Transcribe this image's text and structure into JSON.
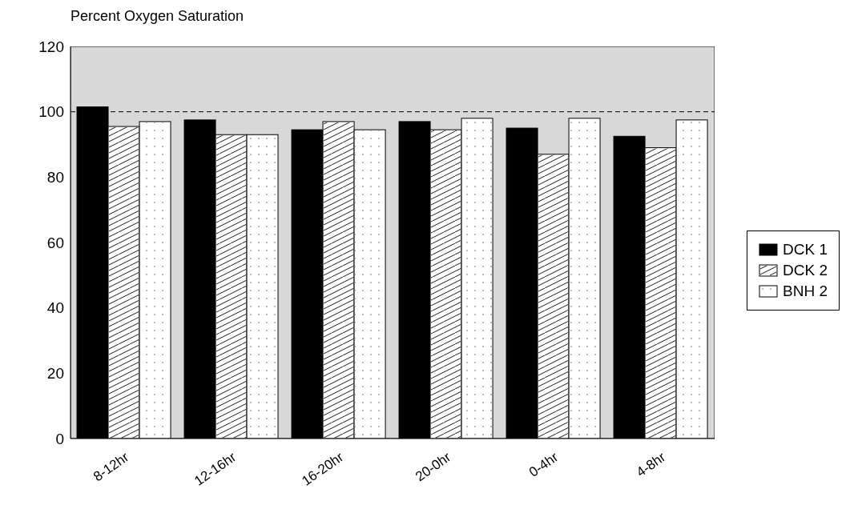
{
  "chart_data": {
    "type": "bar",
    "title": "Percent Oxygen Saturation",
    "categories": [
      "8-12hr",
      "12-16hr",
      "16-20hr",
      "20-0hr",
      "0-4hr",
      "4-8hr"
    ],
    "series": [
      {
        "name": "DCK 1",
        "color": "#000000",
        "values": [
          101.5,
          97.5,
          94.5,
          97,
          95,
          92.5
        ]
      },
      {
        "name": "DCK 2",
        "color": "#ffffff",
        "values": [
          95.5,
          93,
          97,
          94.5,
          87,
          89
        ]
      },
      {
        "name": "BNH 2",
        "color": "#ffffff",
        "values": [
          97,
          93,
          94.5,
          98,
          98,
          97.5
        ]
      }
    ],
    "ylim": [
      0,
      120
    ],
    "yticks": [
      0,
      20,
      40,
      60,
      80,
      100,
      120
    ],
    "grid": false,
    "legend": "right",
    "ref_lines": [
      {
        "axis": "y",
        "value": 100,
        "line_style": "dashed",
        "color": "#000000"
      }
    ]
  }
}
